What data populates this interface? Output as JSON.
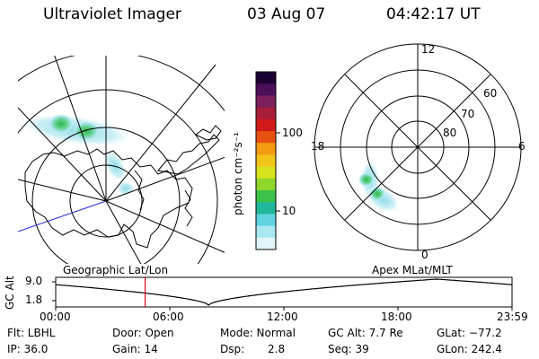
{
  "header": {
    "instrument": "Ultraviolet Imager",
    "date": "03 Aug 07",
    "time": "04:42:17 UT"
  },
  "left_map": {
    "label": "Geographic Lat/Lon"
  },
  "right_map": {
    "label": "Apex MLat/MLT",
    "mlt_labels": {
      "top": "12",
      "right": "6",
      "bottom": "0",
      "left": "18"
    },
    "lat_labels": [
      "60",
      "70",
      "80"
    ]
  },
  "colorbar": {
    "unit_label": "photon cm⁻²s⁻¹",
    "ticks": [
      "100",
      "10"
    ],
    "colors_top_to_bottom": [
      "#1a0033",
      "#4b0f5a",
      "#7a1e5c",
      "#a81d3a",
      "#d01a1a",
      "#e85010",
      "#f39a10",
      "#f2c419",
      "#d5e31d",
      "#8fd62a",
      "#3cc24a",
      "#1fb89a",
      "#5fd3e0",
      "#a9e8f0",
      "#e2f6fa"
    ]
  },
  "altitude_plot": {
    "axis_label": "GC Alt",
    "y_ticks": [
      "9.0",
      "1.8"
    ],
    "x_ticks": [
      "00:00",
      "06:00",
      "12:00",
      "18:00",
      "23:59"
    ],
    "current_time_fraction": 0.196
  },
  "info": {
    "flt": "Flt: LBHL",
    "ip": "IP: 36.0",
    "door": "Door: Open",
    "gain": "Gain: 14",
    "mode": "Mode: Normal",
    "dsp_label": "Dsp:",
    "dsp_value": "2.8",
    "gc_alt": "GC Alt: 7.7 Re",
    "seq": "Seq: 39",
    "glat": "GLat: −77.2",
    "glon": "GLon: 242.4"
  }
}
